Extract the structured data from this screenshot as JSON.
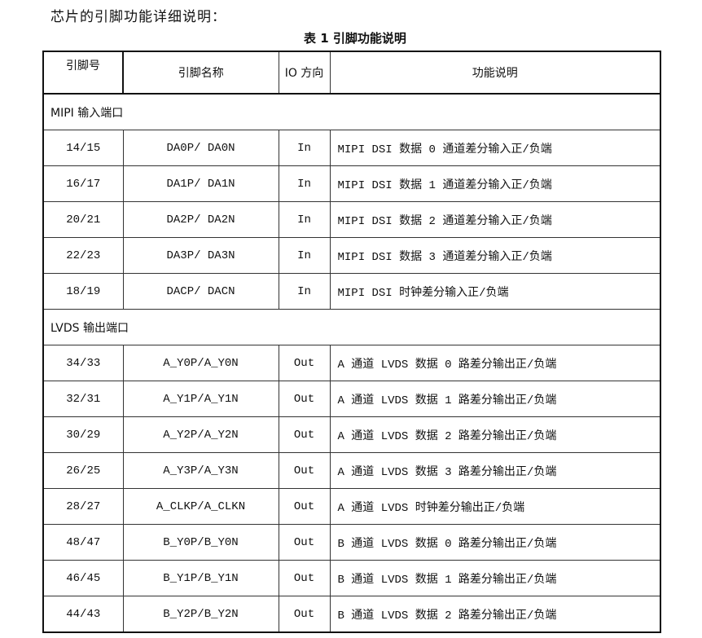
{
  "intro": "芯片的引脚功能详细说明：",
  "caption": "表 1 引脚功能说明",
  "headers": [
    "引脚号",
    "引脚名称",
    "IO 方向",
    "功能说明"
  ],
  "sections": [
    {
      "title": "MIPI 输入端口",
      "rows": [
        [
          "14/15",
          "DA0P/ DA0N",
          "In",
          "MIPI DSI 数据 0 通道差分输入正/负端"
        ],
        [
          "16/17",
          "DA1P/ DA1N",
          "In",
          "MIPI DSI 数据 1 通道差分输入正/负端"
        ],
        [
          "20/21",
          "DA2P/ DA2N",
          "In",
          "MIPI DSI 数据 2 通道差分输入正/负端"
        ],
        [
          "22/23",
          "DA3P/ DA3N",
          "In",
          "MIPI DSI 数据 3 通道差分输入正/负端"
        ],
        [
          "18/19",
          "DACP/ DACN",
          "In",
          "MIPI DSI 时钟差分输入正/负端"
        ]
      ]
    },
    {
      "title": "LVDS 输出端口",
      "rows": [
        [
          "34/33",
          "A_Y0P/A_Y0N",
          "Out",
          "A 通道 LVDS 数据 0 路差分输出正/负端"
        ],
        [
          "32/31",
          "A_Y1P/A_Y1N",
          "Out",
          "A 通道 LVDS 数据 1 路差分输出正/负端"
        ],
        [
          "30/29",
          "A_Y2P/A_Y2N",
          "Out",
          "A 通道 LVDS 数据 2 路差分输出正/负端"
        ],
        [
          "26/25",
          "A_Y3P/A_Y3N",
          "Out",
          "A 通道 LVDS 数据 3 路差分输出正/负端"
        ],
        [
          "28/27",
          "A_CLKP/A_CLKN",
          "Out",
          "A 通道 LVDS 时钟差分输出正/负端"
        ],
        [
          "48/47",
          "B_Y0P/B_Y0N",
          "Out",
          "B 通道 LVDS 数据 0 路差分输出正/负端"
        ],
        [
          "46/45",
          "B_Y1P/B_Y1N",
          "Out",
          "B 通道 LVDS 数据 1 路差分输出正/负端"
        ],
        [
          "44/43",
          "B_Y2P/B_Y2N",
          "Out",
          "B 通道 LVDS 数据 2 路差分输出正/负端"
        ]
      ]
    }
  ]
}
